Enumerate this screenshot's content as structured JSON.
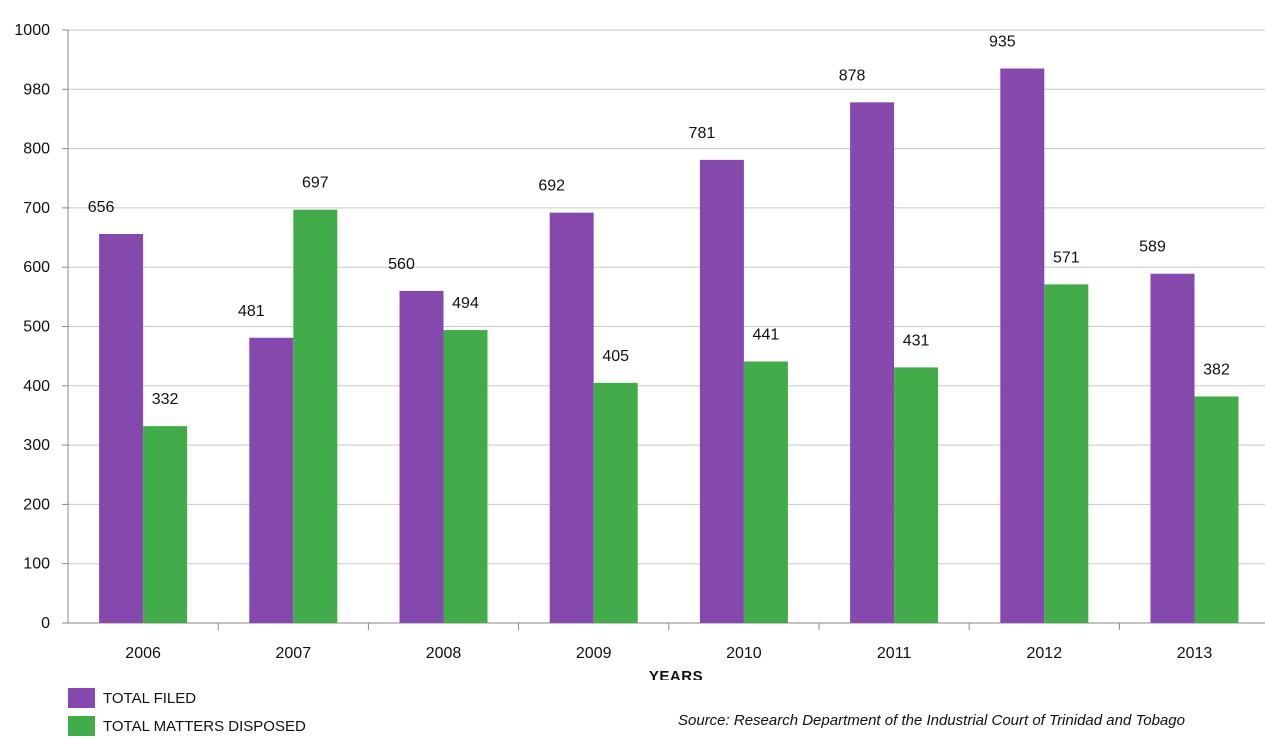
{
  "chart_data": {
    "type": "bar",
    "categories": [
      "2006",
      "2007",
      "2008",
      "2009",
      "2010",
      "2011",
      "2012",
      "2013"
    ],
    "series": [
      {
        "name": "TOTAL FILED",
        "color": "#8549AE",
        "values": [
          656,
          481,
          560,
          692,
          781,
          878,
          935,
          589
        ]
      },
      {
        "name": "TOTAL MATTERS DISPOSED",
        "color": "#42AC4A",
        "values": [
          332,
          697,
          494,
          405,
          441,
          431,
          571,
          382
        ]
      }
    ],
    "y_tick_labels": [
      "0",
      "100",
      "200",
      "300",
      "400",
      "500",
      "600",
      "700",
      "800",
      "980",
      "1000"
    ],
    "ylim": [
      0,
      1000
    ],
    "xlabel": "YEARS",
    "ylabel": "",
    "grid": true,
    "legend_position": "bottom-left",
    "note": "Y-axis tick labels shown as printed; 900 position is labeled \"980\"."
  },
  "source": "Source: Research Department of the Industrial Court  of Trinidad and Tobago"
}
